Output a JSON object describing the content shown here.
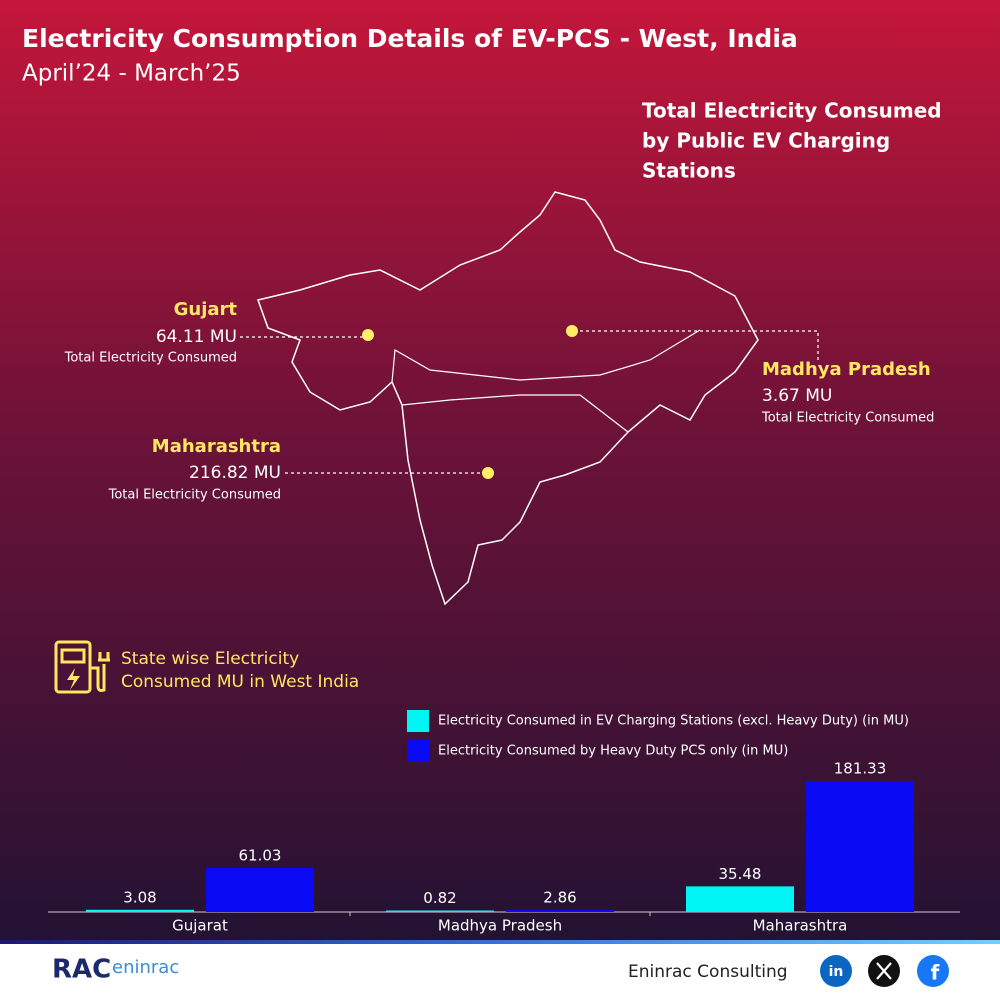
{
  "header": {
    "title": "Electricity Consumption Details of EV-PCS - West, India",
    "subtitle": "April’24 - March’25"
  },
  "map": {
    "title": [
      "Total Electricity Consumed",
      "by Public EV Charging",
      "Stations"
    ],
    "callouts": [
      {
        "state": "Gujart",
        "value": "64.11 MU",
        "caption": "Total Electricity Consumed"
      },
      {
        "state": "Madhya Pradesh",
        "value": "3.67 MU",
        "caption": "Total Electricity Consumed"
      },
      {
        "state": "Maharashtra",
        "value": "216.82 MU",
        "caption": "Total Electricity Consumed"
      }
    ]
  },
  "chart_data": {
    "type": "bar",
    "title": [
      "State wise Electricity",
      "Consumed MU in West India"
    ],
    "categories": [
      "Gujarat",
      "Madhya Pradesh",
      "Maharashtra"
    ],
    "series": [
      {
        "name": "Electricity Consumed in EV Charging Stations (excl. Heavy Duty) (in MU)",
        "color": "#00f5f5",
        "values": [
          3.08,
          0.82,
          35.48
        ]
      },
      {
        "name": "Electricity Consumed by Heavy Duty PCS only (in MU)",
        "color": "#0a0af5",
        "values": [
          61.03,
          2.86,
          181.33
        ]
      }
    ]
  },
  "footer": {
    "logo": "RAC",
    "logo_text": "eninrac",
    "company": "Eninrac Consulting"
  }
}
